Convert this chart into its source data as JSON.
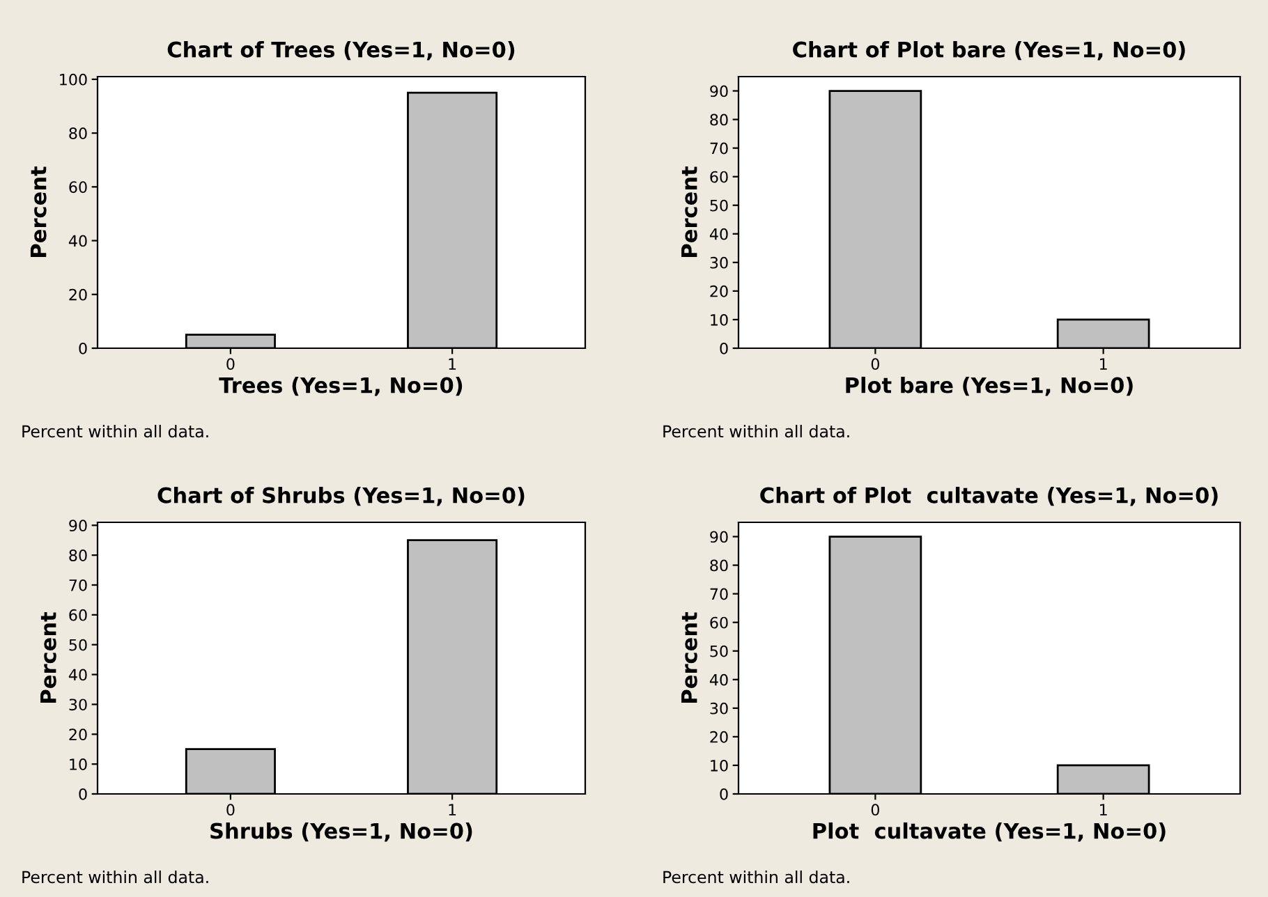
{
  "chart_data": [
    {
      "type": "bar",
      "title": "Chart of Trees (Yes=1, No=0)",
      "xlabel": "Trees (Yes=1, No=0)",
      "ylabel": "Percent",
      "categories": [
        "0",
        "1"
      ],
      "values": [
        5,
        95
      ],
      "color": "#c0c0c0",
      "ylim": [
        0,
        101
      ],
      "yticks": [
        0,
        20,
        40,
        60,
        80,
        100
      ],
      "annotations": [
        "Percent within all data."
      ]
    },
    {
      "type": "bar",
      "title": "Chart of Plot bare (Yes=1, No=0)",
      "xlabel": "Plot bare (Yes=1, No=0)",
      "ylabel": "Percent",
      "categories": [
        "0",
        "1"
      ],
      "values": [
        90,
        10
      ],
      "color": "#c0c0c0",
      "ylim": [
        0,
        95
      ],
      "yticks": [
        0,
        10,
        20,
        30,
        40,
        50,
        60,
        70,
        80,
        90
      ],
      "annotations": [
        "Percent within all data."
      ]
    },
    {
      "type": "bar",
      "title": "Chart of Shrubs (Yes=1, No=0)",
      "xlabel": "Shrubs (Yes=1, No=0)",
      "ylabel": "Percent",
      "categories": [
        "0",
        "1"
      ],
      "values": [
        15,
        85
      ],
      "color": "#c0c0c0",
      "ylim": [
        0,
        91
      ],
      "yticks": [
        0,
        10,
        20,
        30,
        40,
        50,
        60,
        70,
        80,
        90
      ],
      "annotations": [
        "Percent within all data."
      ]
    },
    {
      "type": "bar",
      "title": "Chart of Plot  cultavate (Yes=1, No=0)",
      "xlabel": "Plot  cultavate (Yes=1, No=0)",
      "ylabel": "Percent",
      "categories": [
        "0",
        "1"
      ],
      "values": [
        90,
        10
      ],
      "color": "#c0c0c0",
      "ylim": [
        0,
        95
      ],
      "yticks": [
        0,
        10,
        20,
        30,
        40,
        50,
        60,
        70,
        80,
        90
      ],
      "annotations": [
        "Percent within all data."
      ]
    }
  ]
}
